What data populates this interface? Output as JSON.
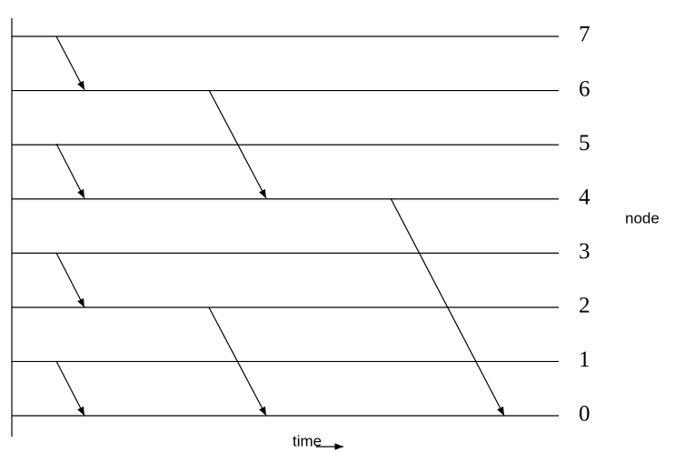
{
  "node_labels": [
    "7",
    "6",
    "5",
    "4",
    "3",
    "2",
    "1",
    "0"
  ],
  "y_axis_label": "node",
  "x_axis_label": "time"
}
